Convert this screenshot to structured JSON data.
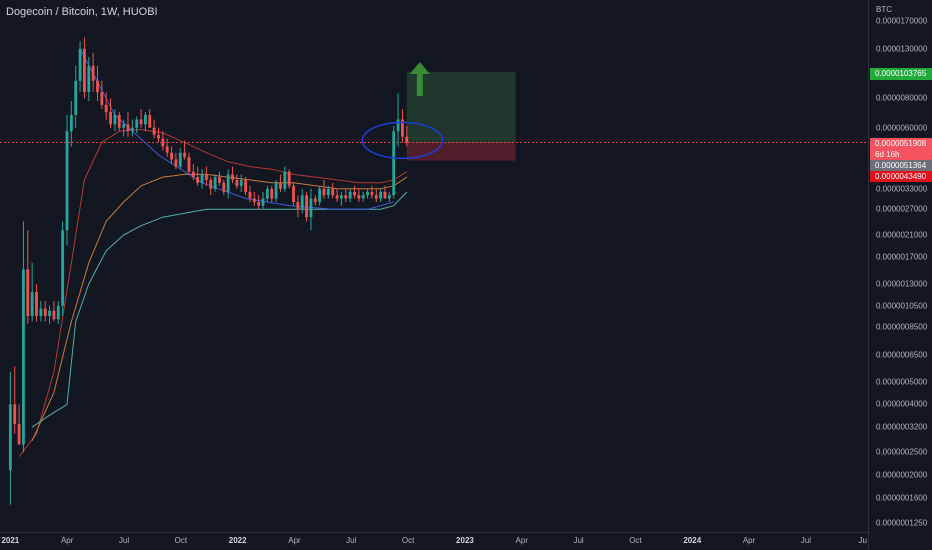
{
  "title": "Dogecoin / Bitcoin, 1W, HUOBI",
  "colors": {
    "background": "#131722",
    "up": "#26a69a",
    "down": "#ef5350",
    "target": "#4caf50",
    "stop": "#f23645",
    "ma_red": "#b23a32",
    "ma_orange": "#c77a3a",
    "ma_teal": "#4fb0a5",
    "curve_blue": "#3b5bdb",
    "ellipse": "#1e3dd8"
  },
  "price_axis": {
    "currency": "BTC",
    "ticks": [
      "0.0000170000",
      "0.0000130000",
      "0.0000080000",
      "0.0000060000",
      "0.0000039000",
      "0.0000033000",
      "0.0000027000",
      "0.0000021000",
      "0.0000017000",
      "0.0000013000",
      "0.0000010500",
      "0.0000008500",
      "0.0000006500",
      "0.0000005000",
      "0.0000004000",
      "0.0000003200",
      "0.0000002500",
      "0.0000002000",
      "0.0000001600",
      "0.0000001250"
    ],
    "labels": {
      "target": "0.0000103765",
      "current": "0.0000051908",
      "countdown": "6d 16h",
      "ma_value": "0.0000051364",
      "stop": "0.0000043490"
    }
  },
  "time_axis": {
    "ticks": [
      {
        "label": "2021",
        "bold": true
      },
      {
        "label": "Apr",
        "bold": false
      },
      {
        "label": "Jul",
        "bold": false
      },
      {
        "label": "Oct",
        "bold": false
      },
      {
        "label": "2022",
        "bold": true
      },
      {
        "label": "Apr",
        "bold": false
      },
      {
        "label": "Jul",
        "bold": false
      },
      {
        "label": "Oct",
        "bold": false
      },
      {
        "label": "2023",
        "bold": true
      },
      {
        "label": "Apr",
        "bold": false
      },
      {
        "label": "Jul",
        "bold": false
      },
      {
        "label": "Oct",
        "bold": false
      },
      {
        "label": "2024",
        "bold": true
      },
      {
        "label": "Apr",
        "bold": false
      },
      {
        "label": "Jul",
        "bold": false
      },
      {
        "label": "Ju",
        "bold": false
      }
    ]
  },
  "chart_data": {
    "type": "candlestick",
    "title": "Dogecoin / Bitcoin, 1W, HUOBI",
    "x_unit": "weeks since 2021-01-01",
    "y_unit": "BTC",
    "y_scale": "log",
    "candles": [
      {
        "t": 0,
        "o": 2.1e-07,
        "h": 5.5e-07,
        "l": 1.5e-07,
        "c": 4e-07
      },
      {
        "t": 1,
        "o": 4e-07,
        "h": 5.8e-07,
        "l": 3e-07,
        "c": 3.3e-07
      },
      {
        "t": 2,
        "o": 3.3e-07,
        "h": 4e-07,
        "l": 2.8e-07,
        "c": 2.7e-07
      },
      {
        "t": 3,
        "o": 2.7e-07,
        "h": 2.4e-06,
        "l": 2.5e-07,
        "c": 1.5e-06
      },
      {
        "t": 4,
        "o": 1.5e-06,
        "h": 2.2e-06,
        "l": 8.8e-07,
        "c": 9.5e-07
      },
      {
        "t": 5,
        "o": 9.5e-07,
        "h": 1.6e-06,
        "l": 9e-07,
        "c": 1.2e-06
      },
      {
        "t": 6,
        "o": 1.2e-06,
        "h": 1.3e-06,
        "l": 9e-07,
        "c": 9.5e-07
      },
      {
        "t": 7,
        "o": 9.5e-07,
        "h": 1.1e-06,
        "l": 9e-07,
        "c": 1.02e-06
      },
      {
        "t": 8,
        "o": 1.02e-06,
        "h": 1.1e-06,
        "l": 9e-07,
        "c": 9.5e-07
      },
      {
        "t": 9,
        "o": 9.5e-07,
        "h": 1.05e-06,
        "l": 8.8e-07,
        "c": 1e-06
      },
      {
        "t": 10,
        "o": 1e-06,
        "h": 1.1e-06,
        "l": 9e-07,
        "c": 9.2e-07
      },
      {
        "t": 11,
        "o": 9.2e-07,
        "h": 1.1e-06,
        "l": 8.8e-07,
        "c": 1.05e-06
      },
      {
        "t": 12,
        "o": 1.05e-06,
        "h": 2.4e-06,
        "l": 9.5e-07,
        "c": 2.2e-06
      },
      {
        "t": 13,
        "o": 2.2e-06,
        "h": 6.8e-06,
        "l": 1.9e-06,
        "c": 5.8e-06
      },
      {
        "t": 14,
        "o": 5.8e-06,
        "h": 7.8e-06,
        "l": 5e-06,
        "c": 6.8e-06
      },
      {
        "t": 15,
        "o": 6.8e-06,
        "h": 1.1e-05,
        "l": 6e-06,
        "c": 9.5e-06
      },
      {
        "t": 16,
        "o": 9.5e-06,
        "h": 1.4e-05,
        "l": 8.5e-06,
        "c": 1.3e-05
      },
      {
        "t": 17,
        "o": 1.3e-05,
        "h": 1.45e-05,
        "l": 8e-06,
        "c": 8.5e-06
      },
      {
        "t": 18,
        "o": 8.5e-06,
        "h": 1.2e-05,
        "l": 7.8e-06,
        "c": 1.1e-05
      },
      {
        "t": 19,
        "o": 1.1e-05,
        "h": 1.25e-05,
        "l": 8.5e-06,
        "c": 9.5e-06
      },
      {
        "t": 20,
        "o": 9.5e-06,
        "h": 1.1e-05,
        "l": 7.8e-06,
        "c": 8.5e-06
      },
      {
        "t": 21,
        "o": 8.5e-06,
        "h": 9.5e-06,
        "l": 7.2e-06,
        "c": 7.5e-06
      },
      {
        "t": 22,
        "o": 7.5e-06,
        "h": 8.5e-06,
        "l": 6.5e-06,
        "c": 7e-06
      },
      {
        "t": 23,
        "o": 7e-06,
        "h": 8e-06,
        "l": 6e-06,
        "c": 6.2e-06
      },
      {
        "t": 24,
        "o": 6.2e-06,
        "h": 7.2e-06,
        "l": 5.8e-06,
        "c": 6.8e-06
      },
      {
        "t": 25,
        "o": 6.8e-06,
        "h": 7e-06,
        "l": 5.8e-06,
        "c": 6e-06
      },
      {
        "t": 26,
        "o": 6e-06,
        "h": 6.5e-06,
        "l": 5.5e-06,
        "c": 6.2e-06
      },
      {
        "t": 27,
        "o": 6.2e-06,
        "h": 7e-06,
        "l": 5.5e-06,
        "c": 5.8e-06
      },
      {
        "t": 28,
        "o": 5.8e-06,
        "h": 6.5e-06,
        "l": 5.5e-06,
        "c": 6e-06
      },
      {
        "t": 29,
        "o": 6e-06,
        "h": 6.7e-06,
        "l": 5.7e-06,
        "c": 6.5e-06
      },
      {
        "t": 30,
        "o": 6.5e-06,
        "h": 7.2e-06,
        "l": 6e-06,
        "c": 6.2e-06
      },
      {
        "t": 31,
        "o": 6.2e-06,
        "h": 7e-06,
        "l": 5.8e-06,
        "c": 6.8e-06
      },
      {
        "t": 32,
        "o": 6.8e-06,
        "h": 7.2e-06,
        "l": 6e-06,
        "c": 6e-06
      },
      {
        "t": 33,
        "o": 6e-06,
        "h": 6.5e-06,
        "l": 5.4e-06,
        "c": 5.6e-06
      },
      {
        "t": 34,
        "o": 5.6e-06,
        "h": 6e-06,
        "l": 5.2e-06,
        "c": 5.4e-06
      },
      {
        "t": 35,
        "o": 5.4e-06,
        "h": 5.8e-06,
        "l": 4.8e-06,
        "c": 5e-06
      },
      {
        "t": 36,
        "o": 5e-06,
        "h": 5.4e-06,
        "l": 4.5e-06,
        "c": 4.7e-06
      },
      {
        "t": 37,
        "o": 4.7e-06,
        "h": 5e-06,
        "l": 4.2e-06,
        "c": 4.4e-06
      },
      {
        "t": 38,
        "o": 4.4e-06,
        "h": 4.7e-06,
        "l": 4e-06,
        "c": 4.1e-06
      },
      {
        "t": 39,
        "o": 4.1e-06,
        "h": 4.9e-06,
        "l": 4e-06,
        "c": 4.7e-06
      },
      {
        "t": 40,
        "o": 4.7e-06,
        "h": 5.3e-06,
        "l": 4.4e-06,
        "c": 4.5e-06
      },
      {
        "t": 41,
        "o": 4.5e-06,
        "h": 4.7e-06,
        "l": 3.8e-06,
        "c": 3.9e-06
      },
      {
        "t": 42,
        "o": 3.9e-06,
        "h": 4.2e-06,
        "l": 3.6e-06,
        "c": 3.7e-06
      },
      {
        "t": 43,
        "o": 3.7e-06,
        "h": 4.1e-06,
        "l": 3.4e-06,
        "c": 3.5e-06
      },
      {
        "t": 44,
        "o": 3.5e-06,
        "h": 4e-06,
        "l": 3.3e-06,
        "c": 3.8e-06
      },
      {
        "t": 45,
        "o": 3.8e-06,
        "h": 4.1e-06,
        "l": 3.4e-06,
        "c": 3.6e-06
      },
      {
        "t": 46,
        "o": 3.6e-06,
        "h": 3.7e-06,
        "l": 3.1e-06,
        "c": 3.3e-06
      },
      {
        "t": 47,
        "o": 3.3e-06,
        "h": 3.8e-06,
        "l": 3.2e-06,
        "c": 3.7e-06
      },
      {
        "t": 48,
        "o": 3.7e-06,
        "h": 3.9e-06,
        "l": 3.4e-06,
        "c": 3.5e-06
      },
      {
        "t": 49,
        "o": 3.5e-06,
        "h": 3.6e-06,
        "l": 3.1e-06,
        "c": 3.2e-06
      },
      {
        "t": 50,
        "o": 3.2e-06,
        "h": 4e-06,
        "l": 3e-06,
        "c": 3.8e-06
      },
      {
        "t": 51,
        "o": 3.8e-06,
        "h": 4.1e-06,
        "l": 3.5e-06,
        "c": 3.6e-06
      },
      {
        "t": 52,
        "o": 3.6e-06,
        "h": 3.8e-06,
        "l": 3.3e-06,
        "c": 3.4e-06
      },
      {
        "t": 53,
        "o": 3.4e-06,
        "h": 3.8e-06,
        "l": 3.2e-06,
        "c": 3.6e-06
      },
      {
        "t": 54,
        "o": 3.6e-06,
        "h": 3.7e-06,
        "l": 3.1e-06,
        "c": 3.2e-06
      },
      {
        "t": 55,
        "o": 3.2e-06,
        "h": 3.4e-06,
        "l": 2.9e-06,
        "c": 3e-06
      },
      {
        "t": 56,
        "o": 3e-06,
        "h": 3.2e-06,
        "l": 2.8e-06,
        "c": 2.9e-06
      },
      {
        "t": 57,
        "o": 2.9e-06,
        "h": 3.1e-06,
        "l": 2.7e-06,
        "c": 2.8e-06
      },
      {
        "t": 58,
        "o": 2.8e-06,
        "h": 3.2e-06,
        "l": 2.7e-06,
        "c": 3e-06
      },
      {
        "t": 59,
        "o": 3e-06,
        "h": 3.4e-06,
        "l": 2.9e-06,
        "c": 3.3e-06
      },
      {
        "t": 60,
        "o": 3.3e-06,
        "h": 3.4e-06,
        "l": 2.9e-06,
        "c": 3e-06
      },
      {
        "t": 61,
        "o": 3e-06,
        "h": 3.6e-06,
        "l": 2.9e-06,
        "c": 3.5e-06
      },
      {
        "t": 62,
        "o": 3.5e-06,
        "h": 3.8e-06,
        "l": 3.2e-06,
        "c": 3.3e-06
      },
      {
        "t": 63,
        "o": 3.3e-06,
        "h": 4.1e-06,
        "l": 3.2e-06,
        "c": 3.9e-06
      },
      {
        "t": 64,
        "o": 3.9e-06,
        "h": 4e-06,
        "l": 3.3e-06,
        "c": 3.4e-06
      },
      {
        "t": 65,
        "o": 3.4e-06,
        "h": 3.5e-06,
        "l": 2.8e-06,
        "c": 2.9e-06
      },
      {
        "t": 66,
        "o": 2.9e-06,
        "h": 3.1e-06,
        "l": 2.5e-06,
        "c": 2.7e-06
      },
      {
        "t": 67,
        "o": 2.7e-06,
        "h": 3.3e-06,
        "l": 2.6e-06,
        "c": 3.1e-06
      },
      {
        "t": 68,
        "o": 3.1e-06,
        "h": 3.2e-06,
        "l": 2.4e-06,
        "c": 2.5e-06
      },
      {
        "t": 69,
        "o": 2.5e-06,
        "h": 3.3e-06,
        "l": 2.2e-06,
        "c": 3e-06
      },
      {
        "t": 70,
        "o": 3e-06,
        "h": 3.1e-06,
        "l": 2.8e-06,
        "c": 2.9e-06
      },
      {
        "t": 71,
        "o": 2.9e-06,
        "h": 3.4e-06,
        "l": 2.8e-06,
        "c": 3.3e-06
      },
      {
        "t": 72,
        "o": 3.3e-06,
        "h": 3.6e-06,
        "l": 3e-06,
        "c": 3.1e-06
      },
      {
        "t": 73,
        "o": 3.1e-06,
        "h": 3.4e-06,
        "l": 3e-06,
        "c": 3.3e-06
      },
      {
        "t": 74,
        "o": 3.3e-06,
        "h": 3.5e-06,
        "l": 3e-06,
        "c": 3.1e-06
      },
      {
        "t": 75,
        "o": 3.1e-06,
        "h": 3.3e-06,
        "l": 2.9e-06,
        "c": 3e-06
      },
      {
        "t": 76,
        "o": 3e-06,
        "h": 3.2e-06,
        "l": 2.8e-06,
        "c": 3.1e-06
      },
      {
        "t": 77,
        "o": 3.1e-06,
        "h": 3.3e-06,
        "l": 2.9e-06,
        "c": 3e-06
      },
      {
        "t": 78,
        "o": 3e-06,
        "h": 3.3e-06,
        "l": 2.9e-06,
        "c": 3.2e-06
      },
      {
        "t": 79,
        "o": 3.2e-06,
        "h": 3.4e-06,
        "l": 3e-06,
        "c": 3.1e-06
      },
      {
        "t": 80,
        "o": 3.1e-06,
        "h": 3.3e-06,
        "l": 2.9e-06,
        "c": 3e-06
      },
      {
        "t": 81,
        "o": 3e-06,
        "h": 3.2e-06,
        "l": 2.9e-06,
        "c": 3.1e-06
      },
      {
        "t": 82,
        "o": 3.1e-06,
        "h": 3.3e-06,
        "l": 3e-06,
        "c": 3.2e-06
      },
      {
        "t": 83,
        "o": 3.2e-06,
        "h": 3.4e-06,
        "l": 3e-06,
        "c": 3.1e-06
      },
      {
        "t": 84,
        "o": 3.1e-06,
        "h": 3.3e-06,
        "l": 2.9e-06,
        "c": 3e-06
      },
      {
        "t": 85,
        "o": 3e-06,
        "h": 3.3e-06,
        "l": 2.9e-06,
        "c": 3.2e-06
      },
      {
        "t": 86,
        "o": 3.2e-06,
        "h": 3.4e-06,
        "l": 3e-06,
        "c": 3e-06
      },
      {
        "t": 87,
        "o": 3e-06,
        "h": 3.2e-06,
        "l": 2.9e-06,
        "c": 3.1e-06
      },
      {
        "t": 88,
        "o": 3.1e-06,
        "h": 6.1e-06,
        "l": 3e-06,
        "c": 5.8e-06
      },
      {
        "t": 89,
        "o": 5.8e-06,
        "h": 8.4e-06,
        "l": 5e-06,
        "c": 6.5e-06
      },
      {
        "t": 90,
        "o": 6.5e-06,
        "h": 7.2e-06,
        "l": 5.2e-06,
        "c": 5.5e-06
      },
      {
        "t": 91,
        "o": 5.5e-06,
        "h": 6.1e-06,
        "l": 5e-06,
        "c": 5.1908e-06
      }
    ],
    "moving_averages": [
      {
        "color": "#b23a32",
        "points": [
          [
            2,
            2.4e-07
          ],
          [
            6,
            3e-07
          ],
          [
            10,
            5.5e-07
          ],
          [
            14,
            1.6e-06
          ],
          [
            17,
            3.6e-06
          ],
          [
            21,
            5.2e-06
          ],
          [
            25,
            5.8e-06
          ],
          [
            30,
            5.9e-06
          ],
          [
            35,
            5.7e-06
          ],
          [
            40,
            5.2e-06
          ],
          [
            45,
            4.7e-06
          ],
          [
            50,
            4.3e-06
          ],
          [
            55,
            4.1e-06
          ],
          [
            60,
            4e-06
          ],
          [
            65,
            3.8e-06
          ],
          [
            70,
            3.7e-06
          ],
          [
            75,
            3.6e-06
          ],
          [
            80,
            3.5e-06
          ],
          [
            85,
            3.5e-06
          ],
          [
            88,
            3.6e-06
          ],
          [
            91,
            3.9e-06
          ]
        ]
      },
      {
        "color": "#c77a3a",
        "points": [
          [
            5,
            2.8e-07
          ],
          [
            10,
            4.5e-07
          ],
          [
            14,
            9e-07
          ],
          [
            18,
            1.6e-06
          ],
          [
            22,
            2.4e-06
          ],
          [
            26,
            2.9e-06
          ],
          [
            30,
            3.4e-06
          ],
          [
            35,
            3.7e-06
          ],
          [
            40,
            3.8e-06
          ],
          [
            45,
            3.8e-06
          ],
          [
            50,
            3.7e-06
          ],
          [
            55,
            3.6e-06
          ],
          [
            60,
            3.5e-06
          ],
          [
            65,
            3.5e-06
          ],
          [
            70,
            3.4e-06
          ],
          [
            75,
            3.3e-06
          ],
          [
            80,
            3.3e-06
          ],
          [
            85,
            3.3e-06
          ],
          [
            88,
            3.4e-06
          ],
          [
            91,
            3.7e-06
          ]
        ]
      },
      {
        "color": "#4fb0a5",
        "points": [
          [
            5,
            3.2e-07
          ],
          [
            9,
            3.6e-07
          ],
          [
            13,
            4e-07
          ],
          [
            15,
            9e-07
          ],
          [
            18,
            1.3e-06
          ],
          [
            22,
            1.8e-06
          ],
          [
            26,
            2.1e-06
          ],
          [
            30,
            2.3e-06
          ],
          [
            35,
            2.5e-06
          ],
          [
            40,
            2.6e-06
          ],
          [
            45,
            2.7e-06
          ],
          [
            50,
            2.7e-06
          ],
          [
            55,
            2.7e-06
          ],
          [
            60,
            2.7e-06
          ],
          [
            65,
            2.7e-06
          ],
          [
            70,
            2.7e-06
          ],
          [
            75,
            2.7e-06
          ],
          [
            80,
            2.7e-06
          ],
          [
            85,
            2.7e-06
          ],
          [
            88,
            2.8e-06
          ],
          [
            91,
            3.2e-06
          ]
        ]
      }
    ],
    "annotations": {
      "saucer_curve": [
        [
          16,
          1.3e-05
        ],
        [
          24,
          6.8e-06
        ],
        [
          34,
          4.6e-06
        ],
        [
          44,
          3.5e-06
        ],
        [
          54,
          3e-06
        ],
        [
          64,
          2.8e-06
        ],
        [
          74,
          2.7e-06
        ],
        [
          82,
          2.7e-06
        ],
        [
          88,
          2.9e-06
        ]
      ],
      "ellipse": {
        "t": 90,
        "price": 5.3e-06
      },
      "long_position": {
        "entry": 5.1908e-06,
        "target": 1.03765e-05,
        "stop": 4.349e-06,
        "t_start": 91,
        "t_end": 116
      },
      "arrow_up": {
        "t": 94
      }
    },
    "ylim": [
      1.147e-07,
      2.095e-05
    ],
    "xlim": [
      -2.38,
      196.88
    ]
  }
}
